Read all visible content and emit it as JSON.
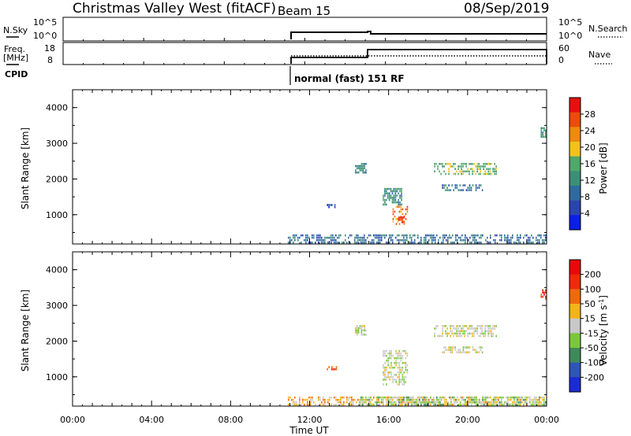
{
  "header": {
    "station": "Christmas Valley West (fitACF)",
    "beam": "Beam 15",
    "date": "08/Sep/2019"
  },
  "side_labels": {
    "nsky": "N.Sky",
    "freq_line1": "Freq.",
    "freq_line2": "[MHz]",
    "cpid": "CPID",
    "nsearch": "N.Search",
    "nave": "Nave"
  },
  "top_panels": {
    "nsky_ticks": [
      "10^5",
      "10^0"
    ],
    "freq_ticks": [
      "18",
      "8"
    ],
    "nsearch_ticks": [
      "10^5",
      "10^0"
    ],
    "nave_ticks": [
      "60",
      "0"
    ],
    "cpid_text": "normal (fast) 151 RF"
  },
  "colors": {
    "power": [
      "#0a1ee6",
      "#2a45b0",
      "#2f6a9f",
      "#3c8f76",
      "#50a86a",
      "#f2c21a",
      "#f08a0a",
      "#f04a0a",
      "#e61010"
    ],
    "velocity": [
      "#1a2ad8",
      "#2e55b8",
      "#3f8a5a",
      "#7ac83a",
      "#c8c8c8",
      "#f2b418",
      "#f06a0a",
      "#ee2a0a",
      "#e60a0a"
    ]
  },
  "chart_data": [
    {
      "type": "heatmap",
      "name": "power",
      "xlabel": "",
      "ylabel": "Slant Range [km]",
      "x_ticks": [
        "00:00",
        "04:00",
        "08:00",
        "12:00",
        "16:00",
        "20:00",
        "00:00"
      ],
      "xlim_hours": [
        0,
        24
      ],
      "ylim_km": [
        180,
        4500
      ],
      "y_ticks": [
        1000,
        2000,
        3000,
        4000
      ],
      "colorbar": {
        "label": "Power [dB]",
        "ticks": [
          "28",
          "24",
          "20",
          "16",
          "12",
          "8",
          "4"
        ],
        "range": [
          0,
          30
        ]
      },
      "regions": [
        {
          "t0": 10.9,
          "t1": 24.0,
          "r0": 180,
          "r1": 450,
          "level": 2
        },
        {
          "t0": 12.8,
          "t1": 13.4,
          "r0": 1180,
          "r1": 1300,
          "level": 1
        },
        {
          "t0": 14.3,
          "t1": 14.9,
          "r0": 2150,
          "r1": 2450,
          "level": 3
        },
        {
          "t0": 15.7,
          "t1": 16.7,
          "r0": 1250,
          "r1": 1750,
          "level": 3
        },
        {
          "t0": 16.2,
          "t1": 17.0,
          "r0": 700,
          "r1": 1250,
          "level": 6
        },
        {
          "t0": 16.5,
          "t1": 16.9,
          "r0": 750,
          "r1": 950,
          "level": 8
        },
        {
          "t0": 18.3,
          "t1": 21.5,
          "r0": 2100,
          "r1": 2450,
          "level": 4
        },
        {
          "t0": 18.7,
          "t1": 20.8,
          "r0": 1650,
          "r1": 1850,
          "level": 2
        },
        {
          "t0": 23.7,
          "t1": 24.0,
          "r0": 3150,
          "r1": 3450,
          "level": 3
        }
      ]
    },
    {
      "type": "heatmap",
      "name": "velocity",
      "xlabel": "Time UT",
      "ylabel": "Slant Range [km]",
      "x_ticks": [
        "00:00",
        "04:00",
        "08:00",
        "12:00",
        "16:00",
        "20:00",
        "00:00"
      ],
      "xlim_hours": [
        0,
        24
      ],
      "ylim_km": [
        180,
        4500
      ],
      "y_ticks": [
        1000,
        2000,
        3000,
        4000
      ],
      "colorbar": {
        "label": "Velocity [m s^-1]",
        "ticks": [
          "200",
          "100",
          "50",
          "15",
          "-15",
          "-50",
          "-100",
          "-200"
        ],
        "range": [
          -250,
          250
        ]
      },
      "regions": [
        {
          "t0": 10.9,
          "t1": 24.0,
          "r0": 180,
          "r1": 450,
          "level": 5
        },
        {
          "t0": 14.5,
          "t1": 24.0,
          "r0": 180,
          "r1": 450,
          "level": 3
        },
        {
          "t0": 12.8,
          "t1": 13.4,
          "r0": 1180,
          "r1": 1300,
          "level": 6
        },
        {
          "t0": 14.3,
          "t1": 14.9,
          "r0": 2150,
          "r1": 2450,
          "level": 4
        },
        {
          "t0": 15.7,
          "t1": 17.0,
          "r0": 750,
          "r1": 1750,
          "level": 4
        },
        {
          "t0": 18.3,
          "t1": 21.5,
          "r0": 2100,
          "r1": 2450,
          "level": 4
        },
        {
          "t0": 18.7,
          "t1": 20.8,
          "r0": 1650,
          "r1": 1850,
          "level": 4
        },
        {
          "t0": 23.7,
          "t1": 24.0,
          "r0": 3150,
          "r1": 3450,
          "level": 7
        }
      ]
    }
  ]
}
